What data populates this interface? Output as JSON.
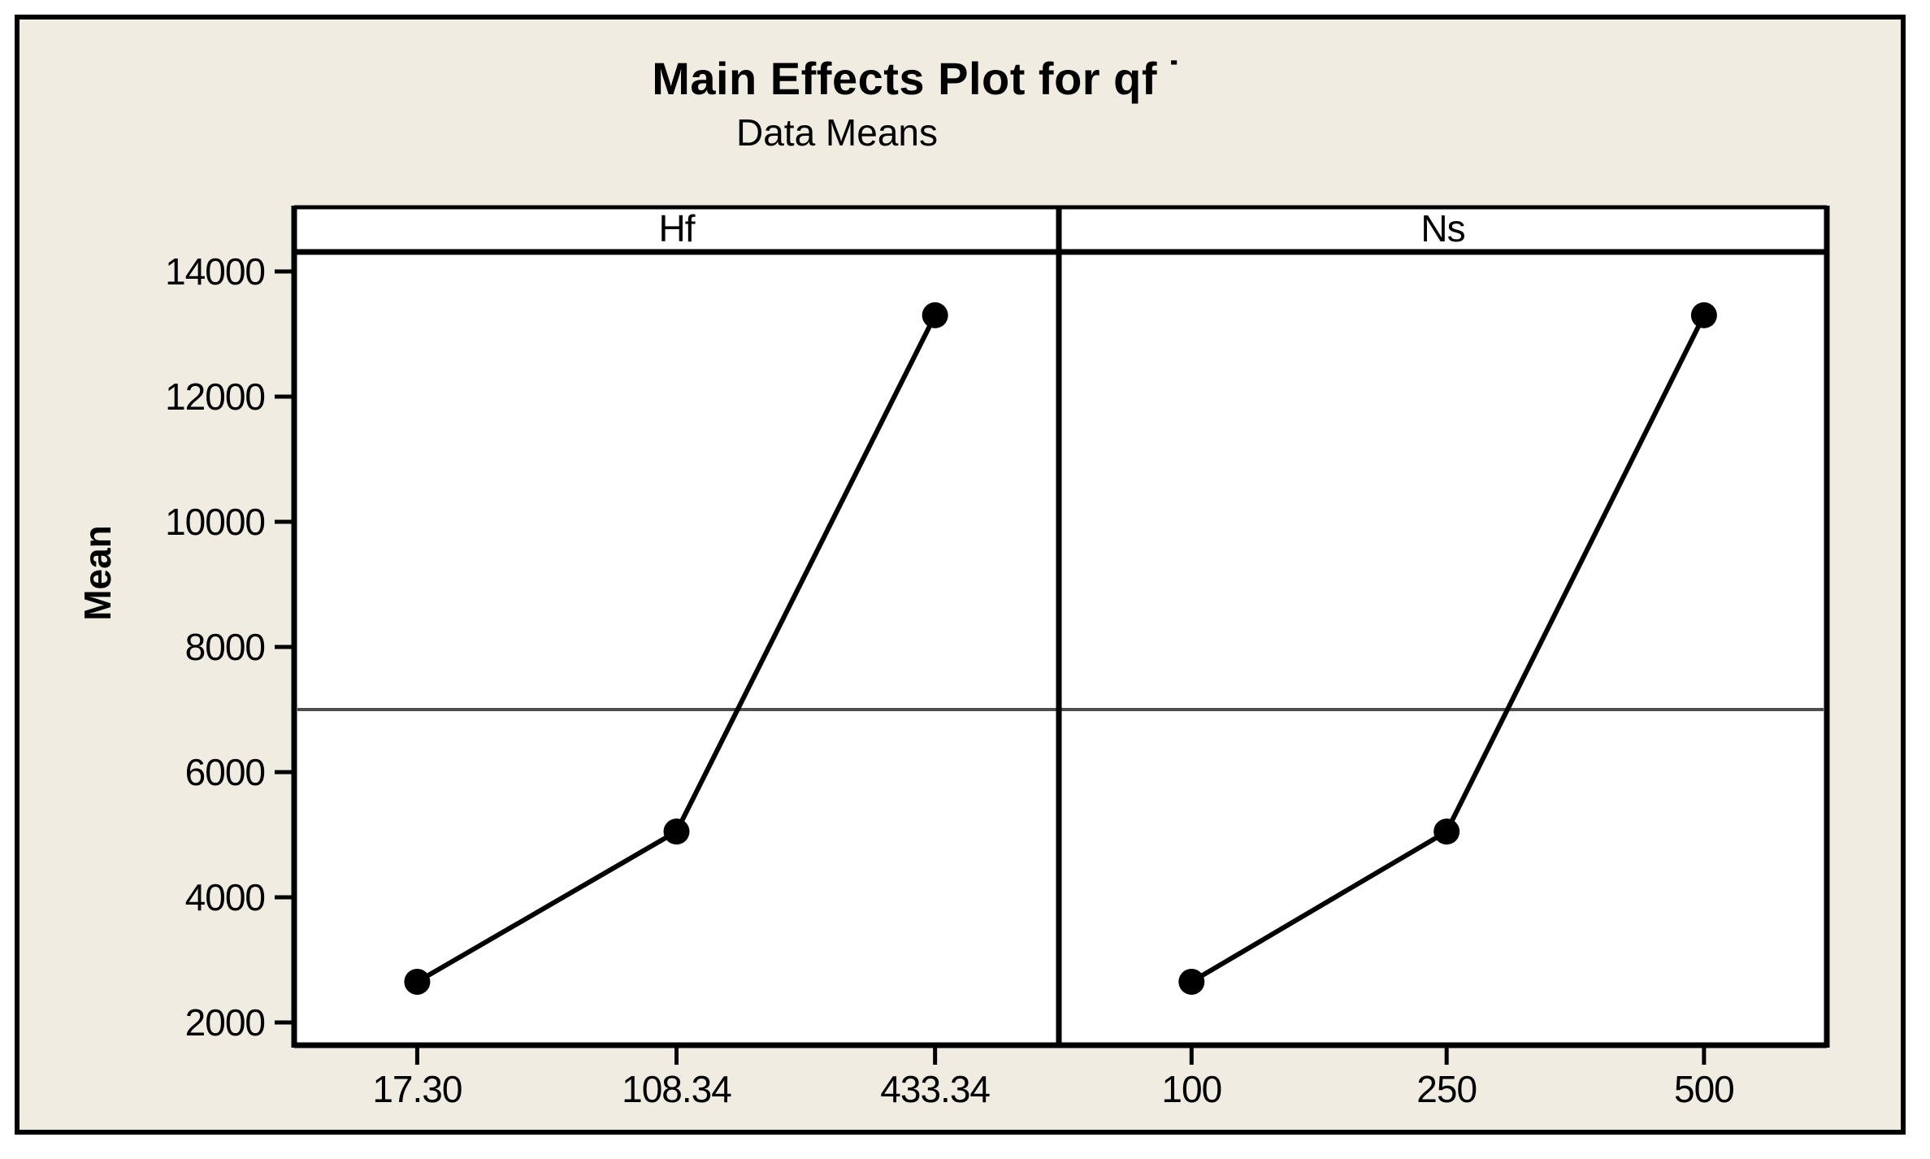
{
  "figure": {
    "title": "Main Effects Plot for qf",
    "title_mark": "˙",
    "subtitle": "Data Means"
  },
  "colors": {
    "canvas_bg": "#F1ECE2",
    "plot_bg": "#FFFFFF",
    "frame": "#000000",
    "series": "#000000",
    "reference_line": "#4D4D4D",
    "text": "#000000"
  },
  "chart_data": {
    "type": "line",
    "title": "Main Effects Plot for qf ˙",
    "subtitle": "Data Means",
    "ylabel": "Mean",
    "xlabel": "",
    "ylim": [
      1500,
      14350
    ],
    "yticks": [
      2000,
      4000,
      6000,
      8000,
      10000,
      12000,
      14000
    ],
    "grid": false,
    "legend": "none",
    "reference_line_value": 7000,
    "marker": "filled-circle",
    "panels": [
      {
        "header": "Hf",
        "categories": [
          "17.30",
          "108.34",
          "433.34"
        ],
        "values": [
          2650,
          5050,
          13300
        ]
      },
      {
        "header": "Ns",
        "categories": [
          "100",
          "250",
          "500"
        ],
        "values": [
          2650,
          5050,
          13300
        ]
      }
    ]
  }
}
